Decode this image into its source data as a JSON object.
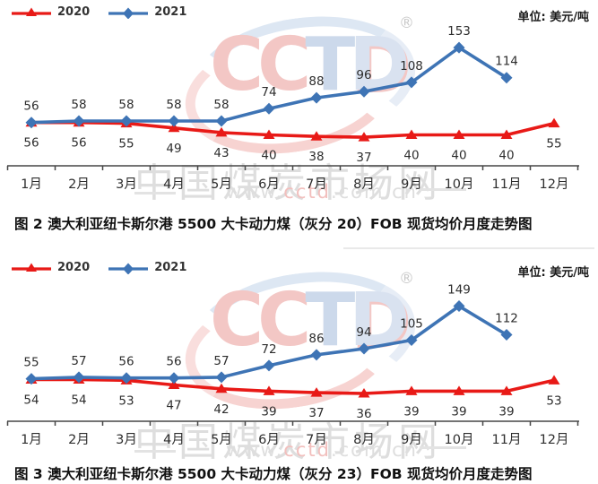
{
  "unit_label": "单位: 美元/吨",
  "colors": {
    "red_2020": "#e81a17",
    "blue_2021": "#3e74b5",
    "axis": "#474747",
    "value_label": "#2d2d2d",
    "watermark_gray": "#dedede",
    "watermark_pink": "#f3c7c5",
    "watermark_blue": "#ccd9eb"
  },
  "watermark": {
    "logo_cc": "CC",
    "logo_t": "T",
    "logo_d": "D",
    "registered": "®",
    "site_name": "中国煤炭市场网",
    "url_www": "www.",
    "url_cctd": "cctd",
    "url_domain": ".com.cn"
  },
  "chart_data": [
    {
      "type": "line",
      "title": "图 2  澳大利亚纽卡斯尔港 5500 大卡动力煤（灰分 20）FOB 现货均价月度走势图",
      "unit": "单位: 美元/吨",
      "categories": [
        "1月",
        "2月",
        "3月",
        "4月",
        "5月",
        "6月",
        "7月",
        "8月",
        "9月",
        "10月",
        "11月",
        "12月"
      ],
      "ylim": [
        0,
        170
      ],
      "legend_position": "top-left",
      "grid": false,
      "series": [
        {
          "name": "2020",
          "color": "#e81a17",
          "marker": "triangle",
          "label_position": "below",
          "values": [
            56,
            56,
            55,
            49,
            43,
            40,
            38,
            37,
            40,
            40,
            40,
            55
          ]
        },
        {
          "name": "2021",
          "color": "#3e74b5",
          "marker": "diamond",
          "label_position": "above",
          "values": [
            56,
            58,
            58,
            58,
            58,
            74,
            88,
            96,
            108,
            153,
            114
          ]
        }
      ]
    },
    {
      "type": "line",
      "title": "图 3  澳大利亚纽卡斯尔港 5500 大卡动力煤（灰分 23）FOB 现货均价月度走势图",
      "unit": "单位: 美元/吨",
      "categories": [
        "1月",
        "2月",
        "3月",
        "4月",
        "5月",
        "6月",
        "7月",
        "8月",
        "9月",
        "10月",
        "11月",
        "12月"
      ],
      "ylim": [
        0,
        170
      ],
      "legend_position": "top-left",
      "grid": false,
      "series": [
        {
          "name": "2020",
          "color": "#e81a17",
          "marker": "triangle",
          "label_position": "below",
          "values": [
            54,
            54,
            53,
            47,
            42,
            39,
            37,
            36,
            39,
            39,
            39,
            53
          ]
        },
        {
          "name": "2021",
          "color": "#3e74b5",
          "marker": "diamond",
          "label_position": "above",
          "values": [
            55,
            57,
            56,
            56,
            57,
            72,
            86,
            94,
            105,
            149,
            112
          ]
        }
      ]
    }
  ]
}
